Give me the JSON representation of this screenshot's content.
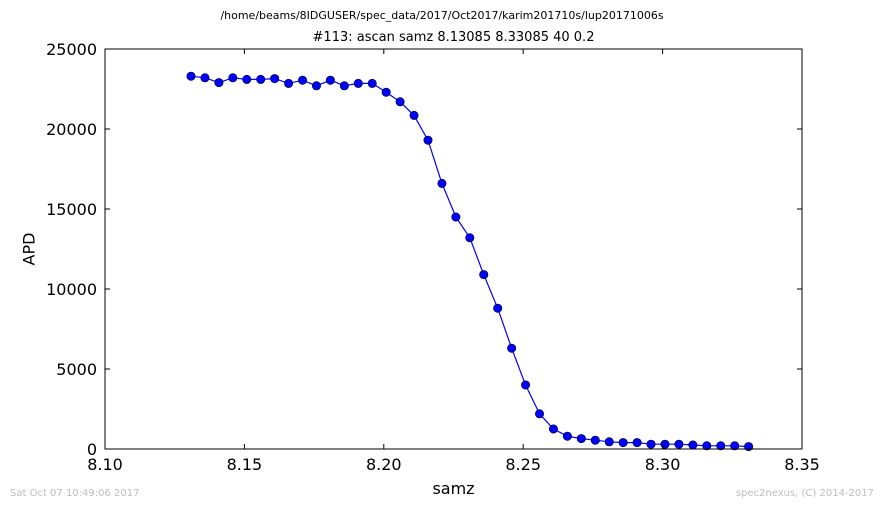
{
  "suptitle": "/home/beams/8IDGUSER/spec_data/2017/Oct2017/karim201710s/lup20171006s",
  "footer_left": "Sat Oct 07 10:49:06 2017",
  "footer_right": "spec2nexus, (C) 2014-2017",
  "chart_data": {
    "type": "line",
    "title": "#113: ascan  samz 8.13085 8.33085  40 0.2",
    "xlabel": "samz",
    "ylabel": "APD",
    "xlim": [
      8.1,
      8.35
    ],
    "ylim": [
      0,
      25000
    ],
    "xticks": [
      8.1,
      8.15,
      8.2,
      8.25,
      8.3,
      8.35
    ],
    "xtick_labels": [
      "8.10",
      "8.15",
      "8.20",
      "8.25",
      "8.30",
      "8.35"
    ],
    "yticks": [
      0,
      5000,
      10000,
      15000,
      20000,
      25000
    ],
    "ytick_labels": [
      "0",
      "5000",
      "10000",
      "15000",
      "20000",
      "25000"
    ],
    "grid": false,
    "line_color": "#0000ff",
    "marker": "circle",
    "x": [
      8.13085,
      8.13585,
      8.14085,
      8.14585,
      8.15085,
      8.15585,
      8.16085,
      8.16585,
      8.17085,
      8.17585,
      8.18085,
      8.18585,
      8.19085,
      8.19585,
      8.20085,
      8.20585,
      8.21085,
      8.21585,
      8.22085,
      8.22585,
      8.23085,
      8.23585,
      8.24085,
      8.24585,
      8.25085,
      8.25585,
      8.26085,
      8.26585,
      8.27085,
      8.27585,
      8.28085,
      8.28585,
      8.29085,
      8.29585,
      8.30085,
      8.30585,
      8.31085,
      8.31585,
      8.32085,
      8.32585,
      8.33085
    ],
    "y": [
      23300,
      23200,
      22900,
      23200,
      23100,
      23100,
      23150,
      22850,
      23050,
      22700,
      23050,
      22700,
      22850,
      22850,
      22300,
      21700,
      20850,
      19300,
      16600,
      14500,
      13200,
      10900,
      8800,
      6300,
      4000,
      2200,
      1250,
      800,
      650,
      550,
      450,
      400,
      400,
      300,
      300,
      300,
      250,
      200,
      200,
      200,
      150
    ]
  }
}
